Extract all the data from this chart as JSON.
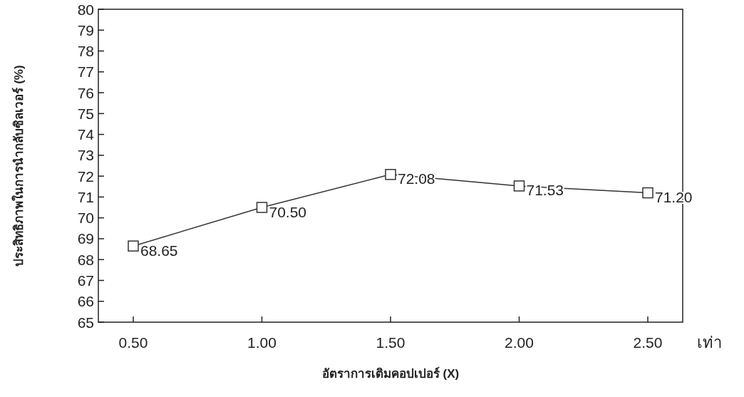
{
  "chart_data": {
    "type": "line",
    "xlabel": "อัตราการเติมคอปเปอร์ (X)",
    "ylabel": "ประสิทธิภาพในการนำกลับซิลเวอร์ (%)",
    "annotations": [
      "เท่า"
    ],
    "categories": [
      "0.50",
      "1.00",
      "1.50",
      "2.00",
      "2.50"
    ],
    "series": [
      {
        "color": "#333333",
        "values": [
          68.65,
          70.5,
          72.08,
          71.53,
          71.2
        ],
        "value_labels": [
          "68.65",
          "70.50",
          "72.08",
          "71.53",
          "71.20"
        ]
      }
    ],
    "marker": "square",
    "line_style": "solid",
    "ylim": [
      65,
      80
    ],
    "yticks": [
      65,
      66,
      67,
      68,
      69,
      70,
      71,
      72,
      73,
      74,
      75,
      76,
      77,
      78,
      79,
      80
    ]
  }
}
